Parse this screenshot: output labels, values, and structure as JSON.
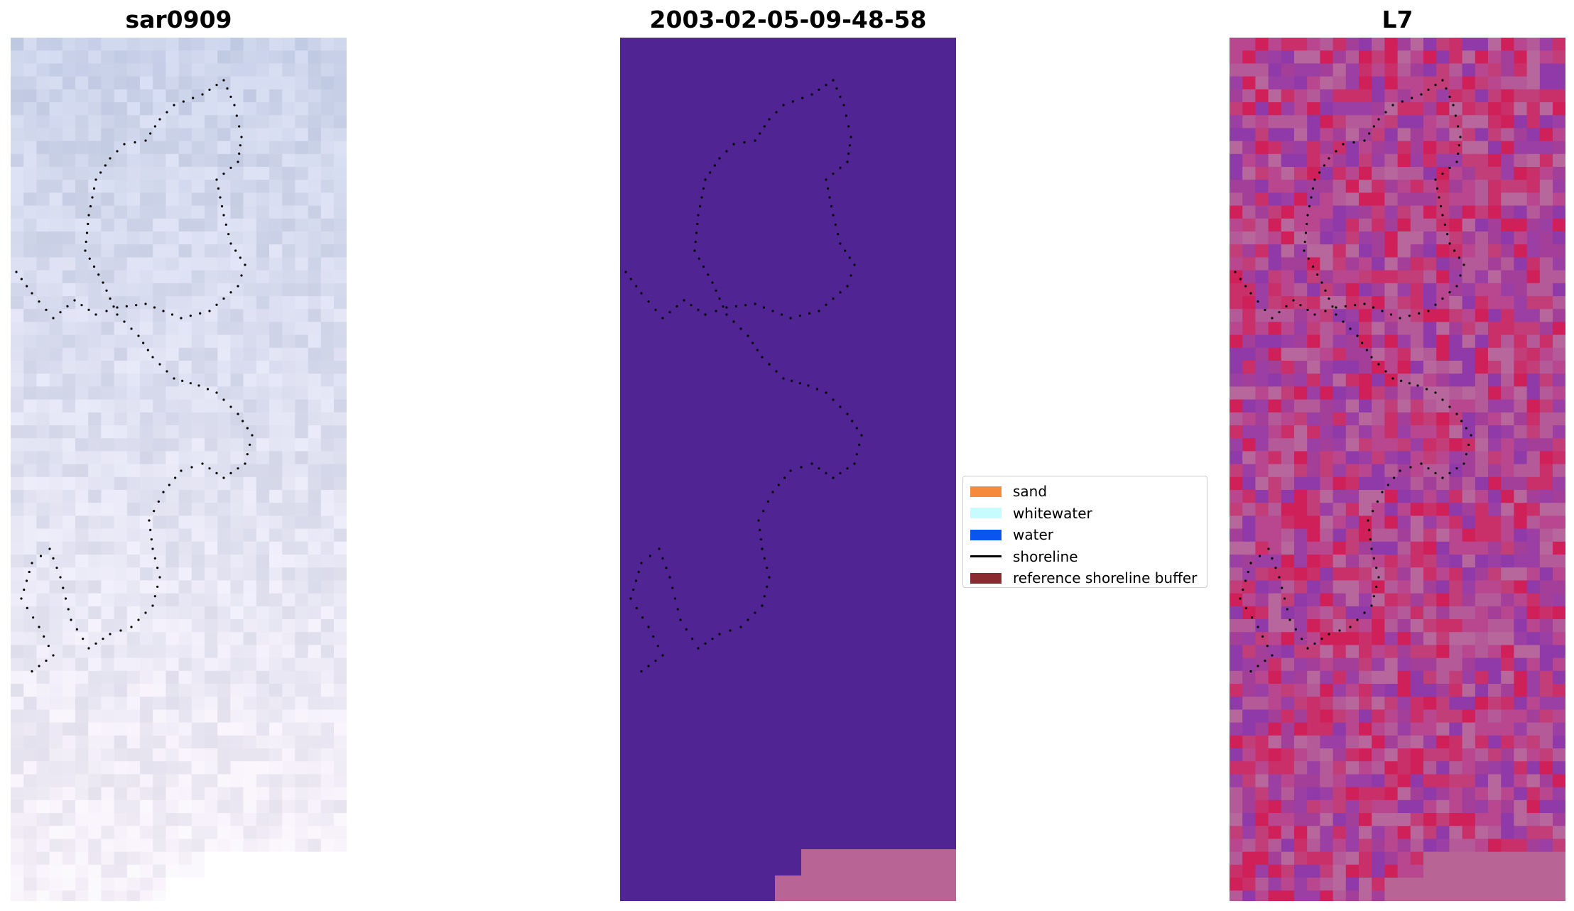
{
  "panels": [
    {
      "title": "sar0909",
      "image": "rgb-satellite-icon"
    },
    {
      "title": "2003-02-05-09-48-58",
      "image": "classified-image-icon"
    },
    {
      "title": "L7",
      "image": "false-color-satellite-icon"
    }
  ],
  "legend": {
    "items": [
      {
        "label": "sand",
        "color": "#f58a3a"
      },
      {
        "label": "whitewater",
        "color": "#c8fbff"
      },
      {
        "label": "water",
        "color": "#0a55f0"
      },
      {
        "label": "shoreline",
        "color": "#000000"
      },
      {
        "label": "reference shoreline buffer",
        "color": "#8b2a30"
      }
    ]
  },
  "colors": {
    "class_background": "#512494",
    "class_patch": "#b86494",
    "rgb_base": "#cfd6ea",
    "falsecolor_base": "#b84a8f"
  }
}
